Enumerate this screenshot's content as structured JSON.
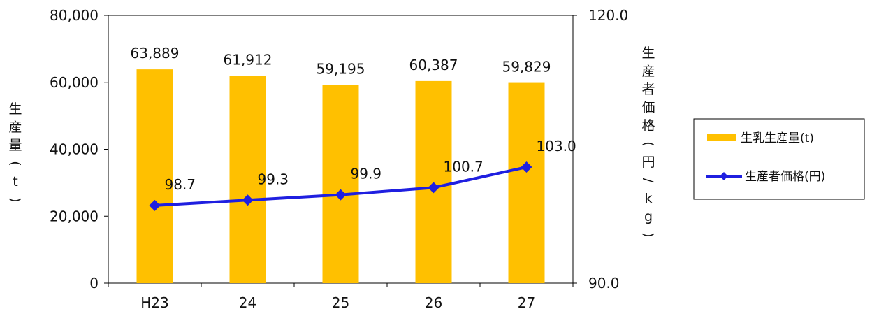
{
  "chart_data": {
    "type": "bar",
    "categories": [
      "H23",
      "24",
      "25",
      "26",
      "27"
    ],
    "series": [
      {
        "name": "生乳生産量(t)",
        "type": "bar",
        "axis": "left",
        "color": "#FFC000",
        "values": [
          63889,
          61912,
          59195,
          60387,
          59829
        ],
        "value_labels": [
          "63,889",
          "61,912",
          "59,195",
          "60,387",
          "59,829"
        ]
      },
      {
        "name": "生産者価格(円)",
        "type": "line",
        "axis": "right",
        "color": "#1F1FE0",
        "values": [
          98.7,
          99.3,
          99.9,
          100.7,
          103.0
        ],
        "value_labels": [
          "98.7",
          "99.3",
          "99.9",
          "100.7",
          "103.0"
        ]
      }
    ],
    "y_left": {
      "label": "生産量(t)",
      "ylim": [
        0,
        80000
      ],
      "ticks": [
        0,
        20000,
        40000,
        60000,
        80000
      ],
      "tick_labels": [
        "0",
        "20,000",
        "40,000",
        "60,000",
        "80,000"
      ]
    },
    "y_right": {
      "label": "生産者価格(円/kg)",
      "ylim": [
        90,
        120
      ],
      "ticks": [
        90,
        120
      ],
      "tick_labels": [
        "90.0",
        "120.0"
      ]
    },
    "grid": false,
    "legend_position": "right"
  }
}
